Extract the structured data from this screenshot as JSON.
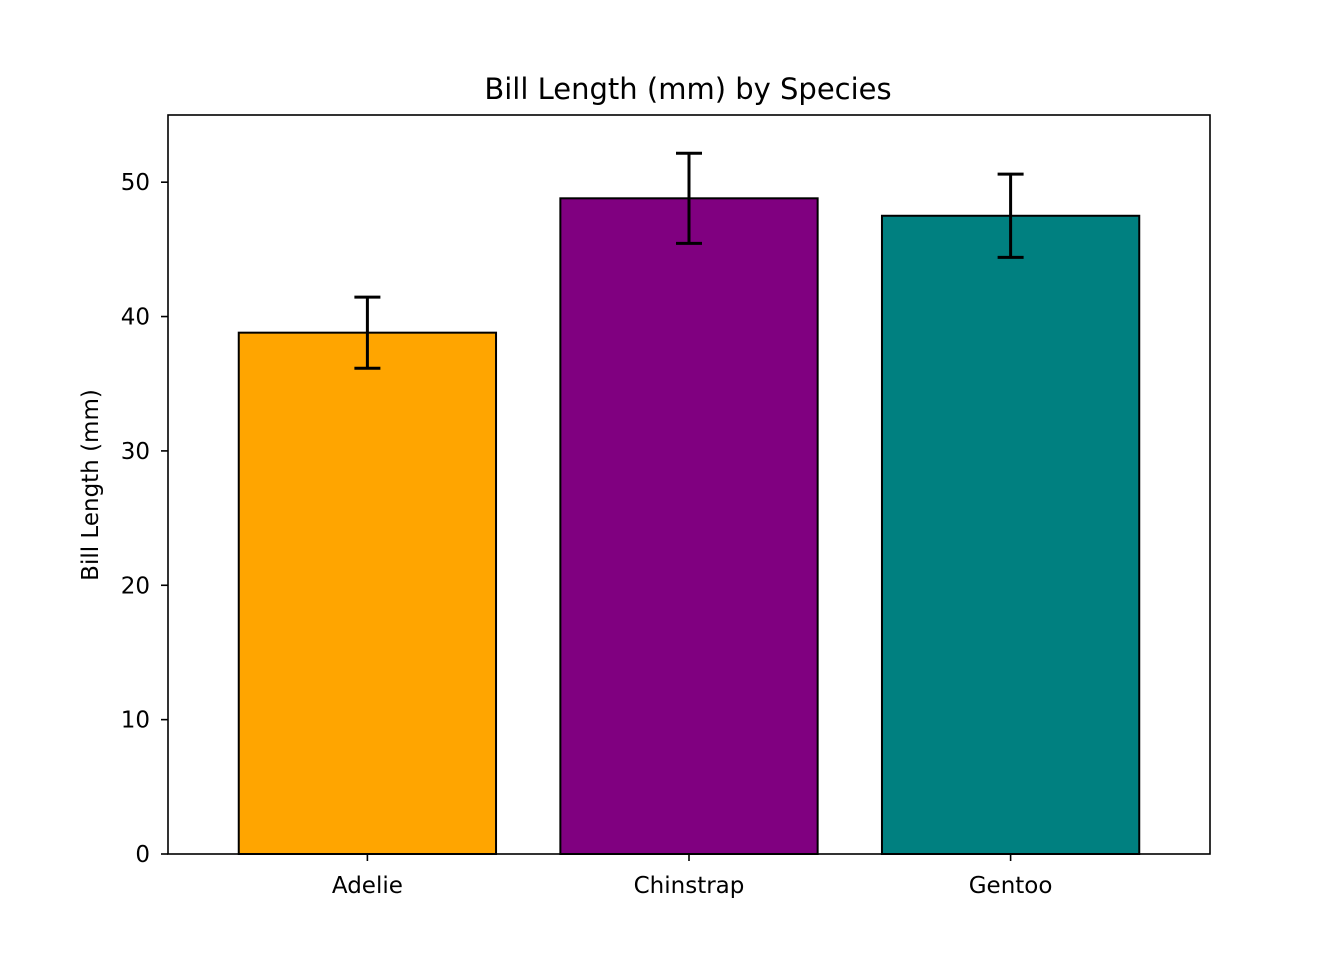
{
  "chart_data": {
    "type": "bar",
    "title": "Bill Length (mm) by Species",
    "xlabel": "",
    "ylabel": "Bill Length (mm)",
    "categories": [
      "Adelie",
      "Chinstrap",
      "Gentoo"
    ],
    "values": [
      38.8,
      48.8,
      47.5
    ],
    "error": [
      2.65,
      3.35,
      3.1
    ],
    "colors": [
      "#FFA500",
      "#800080",
      "#008080"
    ],
    "edge_color": "#000000",
    "ylim": [
      0,
      55
    ],
    "yticks": [
      0,
      10,
      20,
      30,
      40,
      50
    ],
    "grid": false,
    "legend": null
  }
}
